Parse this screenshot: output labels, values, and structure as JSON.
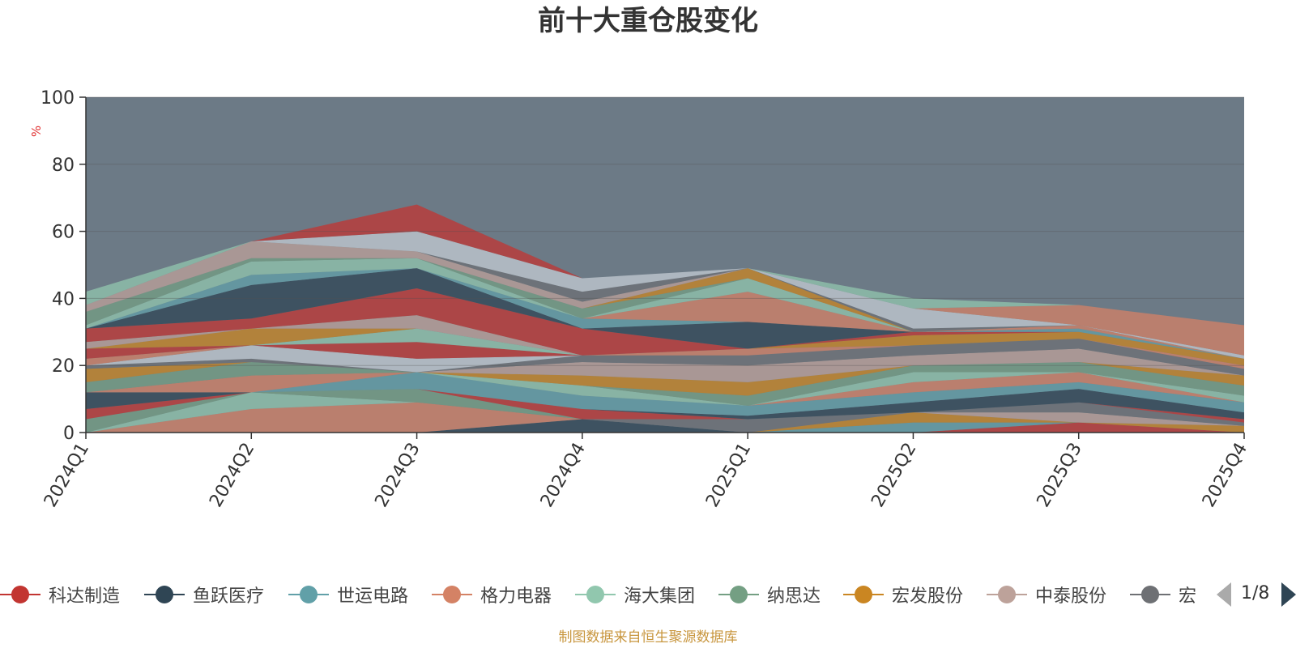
{
  "chart_data": {
    "type": "area",
    "title": "前十大重仓股变化",
    "xlabel": "",
    "ylabel": "%",
    "ylim": [
      0,
      100
    ],
    "y_ticks": [
      0,
      20,
      40,
      60,
      80,
      100
    ],
    "grid": true,
    "legend_position": "bottom",
    "categories": [
      "2024Q1",
      "2024Q2",
      "2024Q3",
      "2024Q4",
      "2025Q1",
      "2025Q2",
      "2025Q3",
      "2025Q4"
    ],
    "series": [
      {
        "name": "科达制造",
        "color": "#c23531",
        "values": [
          0,
          0,
          0,
          0,
          0,
          0,
          3,
          0
        ]
      },
      {
        "name": "鱼跃医疗",
        "color": "#2f4554",
        "values": [
          0,
          0,
          0,
          4,
          0,
          0,
          0,
          0
        ]
      },
      {
        "name": "世运电路",
        "color": "#61a0a8",
        "values": [
          0,
          0,
          0,
          0,
          0,
          3,
          0,
          0
        ]
      },
      {
        "name": "格力电器",
        "color": "#d48265",
        "values": [
          0,
          7,
          9,
          0,
          0,
          0,
          0,
          0
        ]
      },
      {
        "name": "海大集团",
        "color": "#91c7ae",
        "values": [
          0,
          5,
          0,
          0,
          0,
          0,
          0,
          0
        ]
      },
      {
        "name": "纳思达",
        "color": "#749f83",
        "values": [
          4,
          0,
          4,
          0,
          0,
          0,
          0,
          0
        ]
      },
      {
        "name": "宏发股份",
        "color": "#ca8622",
        "values": [
          0,
          0,
          0,
          0,
          0,
          3,
          0,
          2
        ]
      },
      {
        "name": "中泰股份",
        "color": "#bda29a",
        "values": [
          0,
          0,
          0,
          0,
          0,
          0,
          3,
          0
        ]
      },
      {
        "name": "宏",
        "color": "#6e7074",
        "values": [
          0,
          0,
          0,
          0,
          4,
          0,
          3,
          1
        ]
      }
    ],
    "decorative_layers_note": "remaining stacked layers rendered with the same palette",
    "extra_layers": [
      [
        3,
        0,
        0,
        3,
        0,
        0,
        0,
        1
      ],
      [
        5,
        0,
        0,
        0,
        1,
        3,
        4,
        2
      ],
      [
        0,
        0,
        5,
        4,
        3,
        3,
        2,
        3
      ],
      [
        0,
        5,
        0,
        0,
        0,
        3,
        3,
        0
      ],
      [
        0,
        0,
        0,
        3,
        0,
        3,
        0,
        2
      ],
      [
        3,
        4,
        0,
        0,
        3,
        2,
        3,
        3
      ],
      [
        4,
        0,
        0,
        3,
        4,
        0,
        0,
        3
      ],
      [
        0,
        0,
        0,
        4,
        5,
        3,
        4,
        0
      ],
      [
        1,
        1,
        0,
        2,
        3,
        3,
        3,
        2
      ],
      [
        0,
        4,
        4,
        0,
        0,
        0,
        0,
        0
      ],
      [
        2,
        0,
        0,
        0,
        2,
        0,
        0,
        1
      ],
      [
        3,
        0,
        5,
        0,
        0,
        0,
        0,
        0
      ],
      [
        0,
        0,
        4,
        0,
        0,
        0,
        0,
        0
      ],
      [
        0,
        5,
        0,
        0,
        0,
        3,
        2,
        2
      ],
      [
        2,
        0,
        4,
        0,
        0,
        0,
        0,
        0
      ],
      [
        4,
        3,
        8,
        8,
        0,
        1,
        0,
        0
      ],
      [
        0,
        10,
        6,
        0,
        8,
        0,
        0,
        0
      ],
      [
        0,
        3,
        0,
        3,
        0,
        0,
        1,
        0
      ],
      [
        0,
        0,
        0,
        0,
        9,
        0,
        1,
        0
      ],
      [
        1,
        4,
        3,
        0,
        4,
        0,
        0,
        0
      ],
      [
        4,
        1,
        0,
        3,
        0,
        0,
        0,
        0
      ],
      [
        0,
        0,
        0,
        0,
        3,
        0,
        0,
        0
      ],
      [
        2,
        5,
        2,
        2,
        0,
        0,
        0,
        0
      ],
      [
        0,
        0,
        0,
        3,
        0,
        1,
        0,
        0
      ],
      [
        0,
        0,
        6,
        4,
        0,
        6,
        0,
        1
      ],
      [
        0,
        0,
        0,
        0,
        0,
        0,
        6,
        9
      ],
      [
        0,
        0,
        8,
        0,
        0,
        0,
        0,
        0
      ],
      [
        4,
        0,
        0,
        0,
        0,
        3,
        0,
        0
      ],
      [
        0,
        0,
        0,
        0,
        0,
        0,
        0,
        0
      ]
    ],
    "remainder_color": "#6c7a86"
  },
  "legend": {
    "items": [
      "科达制造",
      "鱼跃医疗",
      "世运电路",
      "格力电器",
      "海大集团",
      "纳思达",
      "宏发股份",
      "中泰股份",
      "宏"
    ],
    "page_indicator": "1/8"
  },
  "source_note": "制图数据来自恒生聚源数据库"
}
